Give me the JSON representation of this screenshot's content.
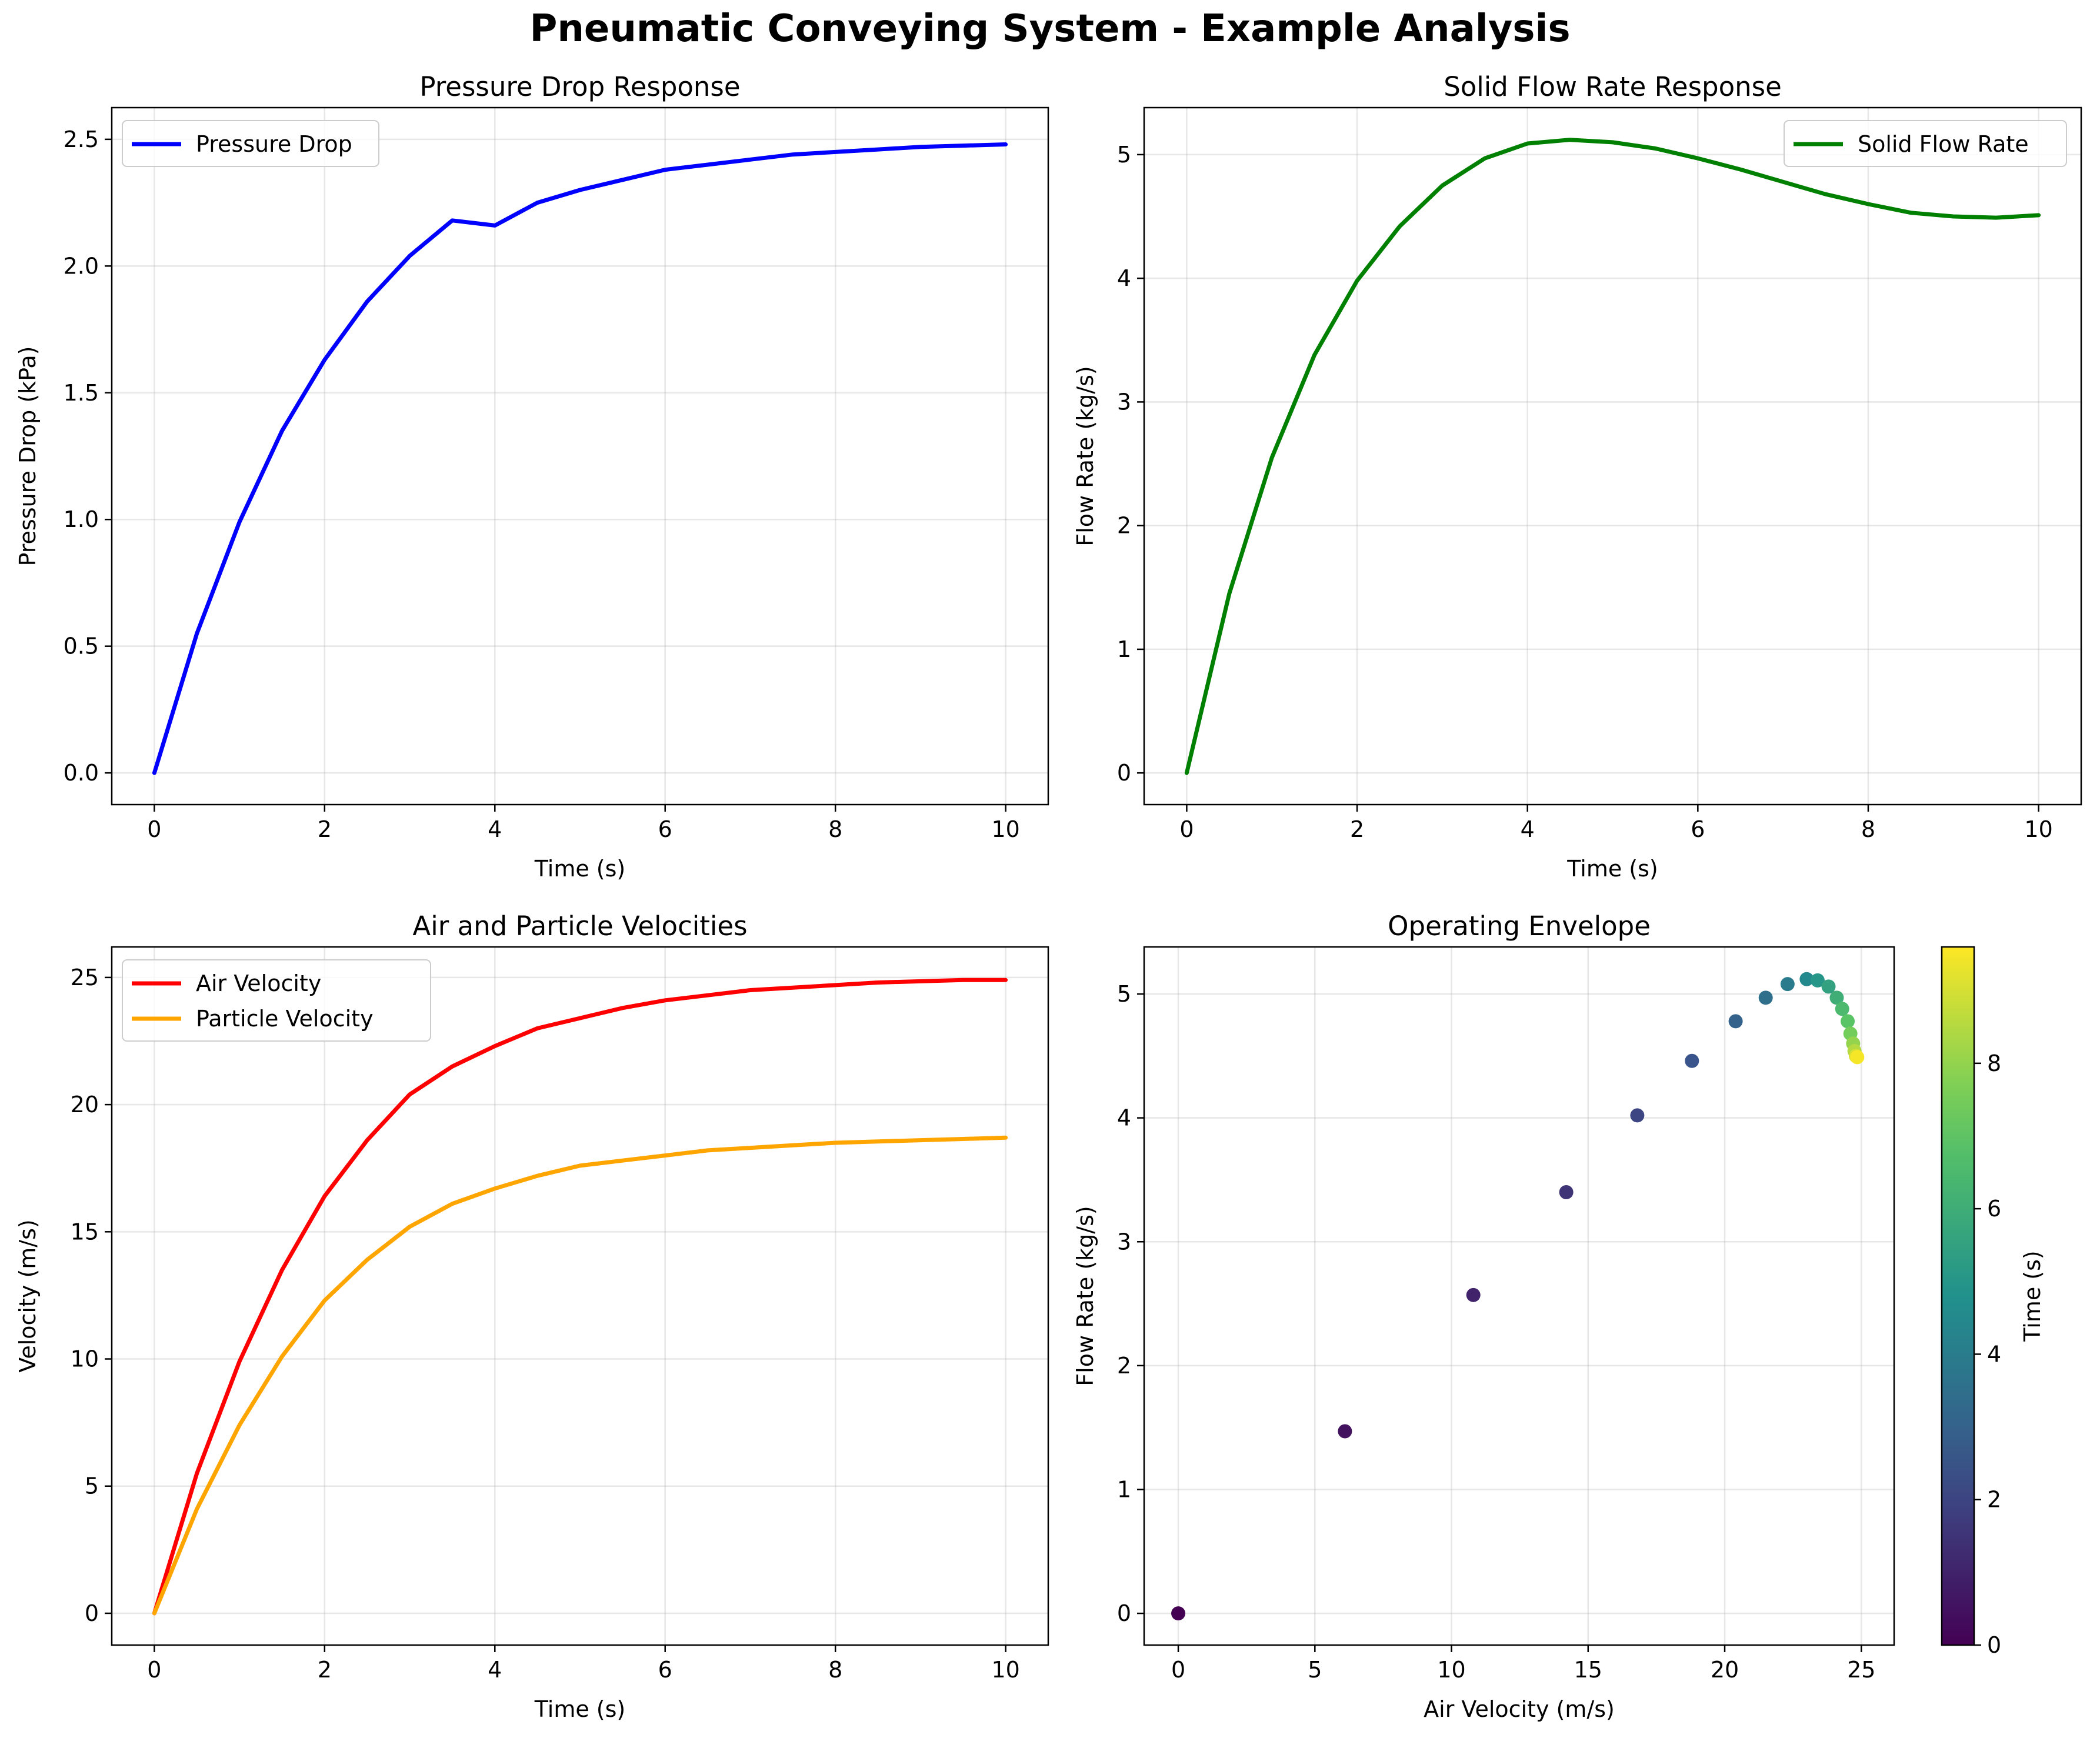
{
  "suptitle": "Pneumatic Conveying System - Example Analysis",
  "chart_data": [
    {
      "type": "line",
      "title": "Pressure Drop Response",
      "xlabel": "Time (s)",
      "ylabel": "Pressure Drop (kPa)",
      "xlim": [
        -0.5,
        10.5
      ],
      "ylim": [
        -0.125,
        2.625
      ],
      "xticks": [
        0,
        2,
        4,
        6,
        8,
        10
      ],
      "yticks": [
        0.0,
        0.5,
        1.0,
        1.5,
        2.0,
        2.5
      ],
      "ytick_labels": [
        "0.0",
        "0.5",
        "1.0",
        "1.5",
        "2.0",
        "2.5"
      ],
      "grid": true,
      "legend_position": "upper-left",
      "series": [
        {
          "name": "Pressure Drop",
          "color": "#0000ff",
          "x": [
            0,
            0.5,
            1,
            1.5,
            2,
            2.5,
            3,
            3.5,
            4,
            4.5,
            5,
            5.5,
            6,
            6.5,
            7,
            7.5,
            8,
            8.5,
            9,
            9.5,
            10
          ],
          "y": [
            0.0,
            0.55,
            0.99,
            1.35,
            1.63,
            1.86,
            2.04,
            2.18,
            2.16,
            2.25,
            2.3,
            2.34,
            2.38,
            2.4,
            2.42,
            2.44,
            2.45,
            2.46,
            2.47,
            2.475,
            2.48
          ]
        }
      ]
    },
    {
      "type": "line",
      "title": "Solid Flow Rate Response",
      "xlabel": "Time (s)",
      "ylabel": "Flow Rate (kg/s)",
      "xlim": [
        -0.5,
        10.5
      ],
      "ylim": [
        -0.256,
        5.38
      ],
      "xticks": [
        0,
        2,
        4,
        6,
        8,
        10
      ],
      "yticks": [
        0,
        1,
        2,
        3,
        4,
        5
      ],
      "ytick_labels": [
        "0",
        "1",
        "2",
        "3",
        "4",
        "5"
      ],
      "grid": true,
      "legend_position": "upper-right",
      "series": [
        {
          "name": "Solid Flow Rate",
          "color": "#008000",
          "x": [
            0,
            0.5,
            1,
            1.5,
            2,
            2.5,
            3,
            3.5,
            4,
            4.5,
            5,
            5.5,
            6,
            6.5,
            7,
            7.5,
            8,
            8.5,
            9,
            9.5,
            10
          ],
          "y": [
            0.0,
            1.45,
            2.55,
            3.38,
            3.98,
            4.42,
            4.75,
            4.97,
            5.09,
            5.12,
            5.1,
            5.05,
            4.97,
            4.88,
            4.78,
            4.68,
            4.6,
            4.53,
            4.5,
            4.49,
            4.51
          ]
        }
      ]
    },
    {
      "type": "line",
      "title": "Air and Particle Velocities",
      "xlabel": "Time (s)",
      "ylabel": "Velocity (m/s)",
      "xlim": [
        -0.5,
        10.5
      ],
      "ylim": [
        -1.25,
        26.2
      ],
      "xticks": [
        0,
        2,
        4,
        6,
        8,
        10
      ],
      "yticks": [
        0,
        5,
        10,
        15,
        20,
        25
      ],
      "ytick_labels": [
        "0",
        "5",
        "10",
        "15",
        "20",
        "25"
      ],
      "grid": true,
      "legend_position": "upper-left",
      "series": [
        {
          "name": "Air Velocity",
          "color": "#ff0000",
          "x": [
            0,
            0.5,
            1,
            1.5,
            2,
            2.5,
            3,
            3.5,
            4,
            4.5,
            5,
            5.5,
            6,
            6.5,
            7,
            7.5,
            8,
            8.5,
            9,
            9.5,
            10
          ],
          "y": [
            0.0,
            5.5,
            9.9,
            13.5,
            16.4,
            18.6,
            20.4,
            21.5,
            22.3,
            23.0,
            23.4,
            23.8,
            24.1,
            24.3,
            24.5,
            24.6,
            24.7,
            24.8,
            24.85,
            24.9,
            24.9
          ]
        },
        {
          "name": "Particle Velocity",
          "color": "#ffa500",
          "x": [
            0,
            0.5,
            1,
            1.5,
            2,
            2.5,
            3,
            3.5,
            4,
            4.5,
            5,
            5.5,
            6,
            6.5,
            7,
            7.5,
            8,
            8.5,
            9,
            9.5,
            10
          ],
          "y": [
            0.0,
            4.1,
            7.4,
            10.1,
            12.3,
            13.9,
            15.2,
            16.1,
            16.7,
            17.2,
            17.6,
            17.8,
            18.0,
            18.2,
            18.3,
            18.4,
            18.5,
            18.55,
            18.6,
            18.65,
            18.7
          ]
        }
      ]
    },
    {
      "type": "scatter",
      "title": "Operating Envelope",
      "xlabel": "Air Velocity (m/s)",
      "ylabel": "Flow Rate (kg/s)",
      "xlim": [
        -1.25,
        26.2
      ],
      "ylim": [
        -0.256,
        5.38
      ],
      "xticks": [
        0,
        5,
        10,
        15,
        20,
        25
      ],
      "yticks": [
        0,
        1,
        2,
        3,
        4,
        5
      ],
      "ytick_labels": [
        "0",
        "1",
        "2",
        "3",
        "4",
        "5"
      ],
      "grid": true,
      "colorbar": {
        "label": "Time (s)",
        "range": [
          0,
          9.6
        ],
        "ticks": [
          0,
          2,
          4,
          6,
          8
        ],
        "colormap": "viridis"
      },
      "points": {
        "x": [
          0.0,
          6.1,
          10.8,
          14.2,
          16.8,
          18.8,
          20.4,
          21.5,
          22.3,
          23.0,
          23.4,
          23.8,
          24.1,
          24.3,
          24.5,
          24.6,
          24.7,
          24.75,
          24.8,
          24.85
        ],
        "y": [
          0.0,
          1.47,
          2.57,
          3.4,
          4.02,
          4.46,
          4.78,
          4.97,
          5.08,
          5.12,
          5.11,
          5.06,
          4.97,
          4.88,
          4.78,
          4.68,
          4.6,
          4.54,
          4.5,
          4.49
        ],
        "time": [
          0.0,
          0.5,
          1.0,
          1.5,
          2.0,
          2.5,
          3.0,
          3.5,
          4.0,
          4.5,
          5.0,
          5.5,
          6.0,
          6.5,
          7.0,
          7.5,
          8.0,
          8.5,
          9.0,
          9.5
        ]
      }
    }
  ]
}
